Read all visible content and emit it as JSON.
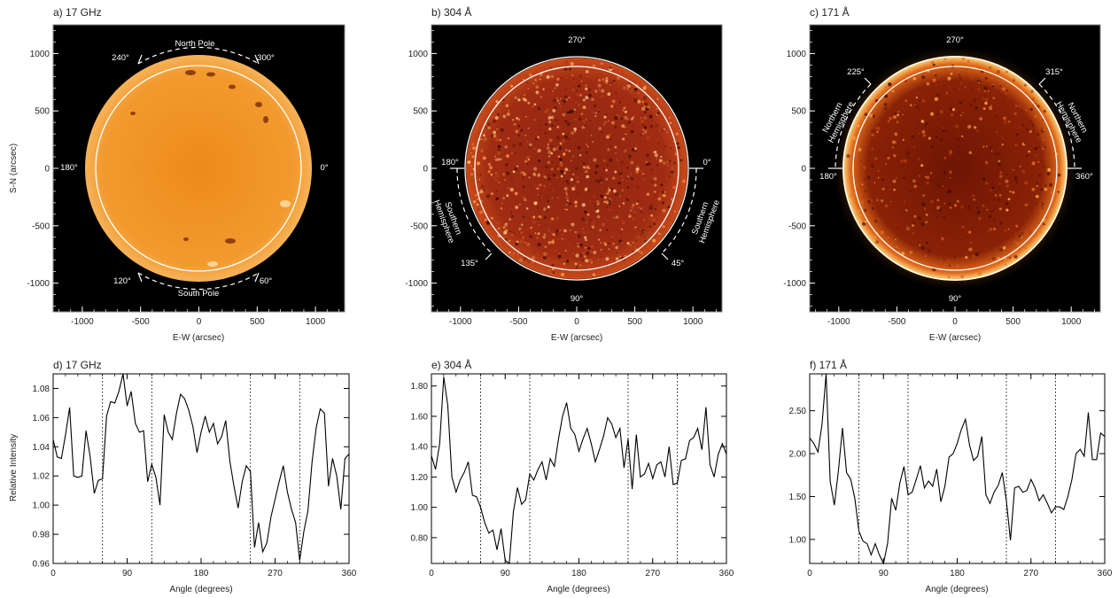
{
  "figure": {
    "y_axis_label_images": "S-N (arcsec)",
    "x_axis_label_images": "E-W (arcsec)",
    "y_axis_label_profiles": "Relative Intensity",
    "x_axis_label_profiles": "Angle (degrees)"
  },
  "colors": {
    "panel_background": "#000000",
    "disk_17ghz": "#f08c1e",
    "disk_304": "#9a2a10",
    "disk_171": "#7a1a06",
    "limb_171": "#ffd27a",
    "circle": "#ffffff",
    "profile_line": "#000000"
  },
  "images": [
    {
      "label": "a) 17 GHz",
      "xlim": [
        -1250,
        1250
      ],
      "ylim": [
        -1250,
        1250
      ],
      "xticks": [
        "-1000",
        "-500",
        "0",
        "500",
        "1000"
      ],
      "yticks": [
        "-1000",
        "-500",
        "0",
        "500",
        "1000"
      ],
      "annotations": {
        "top_text": "North Pole",
        "bottom_text": "South Pole",
        "angles": [
          "240°",
          "300°",
          "180°",
          "0°",
          "120°",
          "60°"
        ]
      }
    },
    {
      "label": "b) 304 Å",
      "xlim": [
        -1250,
        1250
      ],
      "ylim": [
        -1250,
        1250
      ],
      "xticks": [
        "-1000",
        "-500",
        "0",
        "500",
        "1000"
      ],
      "yticks": [
        "-1000",
        "-500",
        "0",
        "500",
        "1000"
      ],
      "annotations": {
        "left_text": [
          "Southern",
          "Hemisphere"
        ],
        "right_text": [
          "Southern",
          "Hemisphere"
        ],
        "angles": [
          "270°",
          "180°",
          "0°",
          "135°",
          "45°",
          "90°"
        ]
      }
    },
    {
      "label": "c) 171 Å",
      "xlim": [
        -1250,
        1250
      ],
      "ylim": [
        -1250,
        1250
      ],
      "xticks": [
        "-1000",
        "-500",
        "0",
        "500",
        "1000"
      ],
      "yticks": [
        "-1000",
        "-500",
        "0",
        "500",
        "1000"
      ],
      "annotations": {
        "left_text": [
          "Northern",
          "Hemisphere"
        ],
        "right_text": [
          "Northern",
          "Hemisphere"
        ],
        "angles": [
          "270°",
          "225°",
          "315°",
          "180°",
          "360°",
          "90°"
        ]
      }
    }
  ],
  "chart_data": [
    {
      "type": "line",
      "title": "d) 17 GHz",
      "xlabel": "Angle (degrees)",
      "ylabel": "Relative Intensity",
      "xlim": [
        0,
        360
      ],
      "ylim": [
        0.96,
        1.09
      ],
      "xticks": [
        0,
        90,
        180,
        270,
        360
      ],
      "yticks": [
        0.96,
        0.98,
        1.0,
        1.02,
        1.04,
        1.06,
        1.08
      ],
      "ytick_labels": [
        "0.96",
        "0.98",
        "1.00",
        "1.02",
        "1.04",
        "1.06",
        "1.08"
      ],
      "vlines": [
        60,
        120,
        240,
        300
      ],
      "x": [
        0,
        5,
        10,
        15,
        20,
        25,
        30,
        35,
        40,
        45,
        50,
        55,
        60,
        65,
        70,
        75,
        80,
        85,
        90,
        95,
        100,
        105,
        110,
        115,
        120,
        125,
        130,
        135,
        140,
        145,
        150,
        155,
        160,
        165,
        170,
        175,
        180,
        185,
        190,
        195,
        200,
        205,
        210,
        215,
        220,
        225,
        230,
        235,
        240,
        245,
        250,
        255,
        260,
        265,
        270,
        275,
        280,
        285,
        290,
        295,
        300,
        305,
        310,
        315,
        320,
        325,
        330,
        335,
        340,
        345,
        350,
        355,
        360
      ],
      "y": [
        1.045,
        1.033,
        1.032,
        1.048,
        1.067,
        1.02,
        1.019,
        1.02,
        1.051,
        1.033,
        1.008,
        1.017,
        1.018,
        1.061,
        1.071,
        1.07,
        1.078,
        1.09,
        1.068,
        1.078,
        1.056,
        1.05,
        1.051,
        1.016,
        1.028,
        1.019,
        1.0,
        1.062,
        1.05,
        1.045,
        1.063,
        1.076,
        1.073,
        1.065,
        1.054,
        1.036,
        1.05,
        1.061,
        1.05,
        1.056,
        1.042,
        1.047,
        1.058,
        1.03,
        1.013,
        0.998,
        1.016,
        1.027,
        1.023,
        0.971,
        0.988,
        0.968,
        0.974,
        0.992,
        1.004,
        1.016,
        1.027,
        1.009,
        0.997,
        0.988,
        0.962,
        0.982,
        0.996,
        1.03,
        1.053,
        1.066,
        1.063,
        1.013,
        1.032,
        1.02,
        0.997,
        1.032,
        1.035
      ]
    },
    {
      "type": "line",
      "title": "e) 304 Å",
      "xlabel": "Angle (degrees)",
      "ylabel": "",
      "xlim": [
        0,
        360
      ],
      "ylim": [
        0.63,
        1.88
      ],
      "xticks": [
        0,
        90,
        180,
        270,
        360
      ],
      "yticks": [
        0.8,
        1.0,
        1.2,
        1.4,
        1.6,
        1.8
      ],
      "ytick_labels": [
        "0.80",
        "1.00",
        "1.20",
        "1.40",
        "1.60",
        "1.80"
      ],
      "vlines": [
        60,
        120,
        240,
        300
      ],
      "x": [
        0,
        5,
        10,
        15,
        20,
        25,
        30,
        35,
        40,
        45,
        50,
        55,
        60,
        65,
        70,
        75,
        80,
        85,
        90,
        95,
        100,
        105,
        110,
        115,
        120,
        125,
        130,
        135,
        140,
        145,
        150,
        155,
        160,
        165,
        170,
        175,
        180,
        185,
        190,
        195,
        200,
        205,
        210,
        215,
        220,
        225,
        230,
        235,
        240,
        245,
        250,
        255,
        260,
        265,
        270,
        275,
        280,
        285,
        290,
        295,
        300,
        305,
        310,
        315,
        320,
        325,
        330,
        335,
        340,
        345,
        350,
        355,
        360
      ],
      "y": [
        1.34,
        1.25,
        1.42,
        1.86,
        1.67,
        1.2,
        1.1,
        1.18,
        1.23,
        1.3,
        1.08,
        1.07,
        1.0,
        0.9,
        0.83,
        0.85,
        0.72,
        0.86,
        0.65,
        0.63,
        0.97,
        1.13,
        1.02,
        1.05,
        1.22,
        1.18,
        1.25,
        1.3,
        1.18,
        1.32,
        1.27,
        1.45,
        1.6,
        1.69,
        1.52,
        1.48,
        1.37,
        1.45,
        1.52,
        1.42,
        1.3,
        1.38,
        1.47,
        1.59,
        1.55,
        1.46,
        1.52,
        1.26,
        1.45,
        1.12,
        1.48,
        1.2,
        1.22,
        1.29,
        1.19,
        1.28,
        1.3,
        1.2,
        1.4,
        1.15,
        1.16,
        1.31,
        1.32,
        1.44,
        1.46,
        1.52,
        1.38,
        1.66,
        1.28,
        1.2,
        1.35,
        1.42,
        1.35
      ]
    },
    {
      "type": "line",
      "title": "f) 171 Å",
      "xlabel": "Angle (degrees)",
      "ylabel": "",
      "xlim": [
        0,
        360
      ],
      "ylim": [
        0.72,
        2.93
      ],
      "xticks": [
        0,
        90,
        180,
        270,
        360
      ],
      "yticks": [
        1.0,
        1.5,
        2.0,
        2.5
      ],
      "ytick_labels": [
        "1.00",
        "1.50",
        "2.00",
        "2.50"
      ],
      "vlines": [
        60,
        120,
        240,
        300
      ],
      "x": [
        0,
        5,
        10,
        15,
        20,
        25,
        30,
        35,
        40,
        45,
        50,
        55,
        60,
        65,
        70,
        75,
        80,
        85,
        90,
        95,
        100,
        105,
        110,
        115,
        120,
        125,
        130,
        135,
        140,
        145,
        150,
        155,
        160,
        165,
        170,
        175,
        180,
        185,
        190,
        195,
        200,
        205,
        210,
        215,
        220,
        225,
        230,
        235,
        240,
        245,
        250,
        255,
        260,
        265,
        270,
        275,
        280,
        285,
        290,
        295,
        300,
        305,
        310,
        315,
        320,
        325,
        330,
        335,
        340,
        345,
        350,
        355,
        360
      ],
      "y": [
        2.18,
        2.12,
        2.02,
        2.34,
        2.93,
        1.68,
        1.4,
        1.8,
        2.3,
        1.78,
        1.7,
        1.48,
        1.1,
        0.98,
        0.95,
        0.82,
        0.95,
        0.82,
        0.72,
        0.95,
        1.48,
        1.34,
        1.66,
        1.85,
        1.52,
        1.55,
        1.7,
        1.86,
        1.6,
        1.68,
        1.62,
        1.82,
        1.44,
        1.62,
        1.96,
        2.0,
        2.12,
        2.28,
        2.4,
        2.1,
        1.92,
        1.97,
        2.2,
        1.52,
        1.42,
        1.55,
        1.63,
        1.78,
        1.45,
        0.99,
        1.6,
        1.62,
        1.55,
        1.57,
        1.7,
        1.6,
        1.45,
        1.52,
        1.42,
        1.31,
        1.38,
        1.38,
        1.35,
        1.5,
        1.7,
        2.0,
        2.05,
        1.97,
        2.48,
        1.93,
        1.93,
        2.24,
        2.2
      ]
    }
  ]
}
